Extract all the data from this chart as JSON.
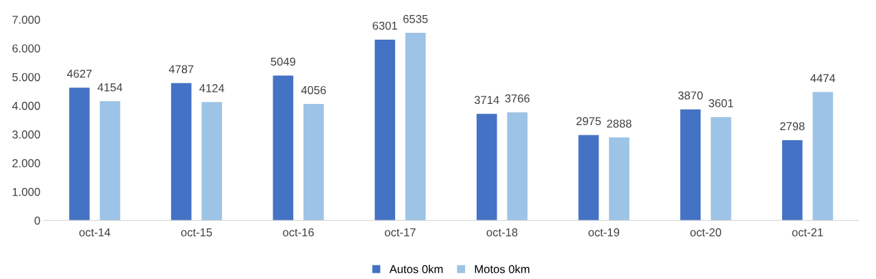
{
  "chart_data": {
    "type": "bar",
    "categories": [
      "oct-14",
      "oct-15",
      "oct-16",
      "oct-17",
      "oct-18",
      "oct-19",
      "oct-20",
      "oct-21"
    ],
    "series": [
      {
        "name": "Autos 0km",
        "color": "#4472c4",
        "values": [
          4627,
          4787,
          5049,
          6301,
          3714,
          2975,
          3870,
          2798
        ]
      },
      {
        "name": "Motos 0km",
        "color": "#9dc3e6",
        "values": [
          4154,
          4124,
          4056,
          6535,
          3766,
          2888,
          3601,
          4474
        ]
      }
    ],
    "ylim": [
      0,
      7000
    ],
    "yticks": [
      0,
      {
        "value": 1000,
        "label": "1.000"
      },
      {
        "value": 2000,
        "label": "2.000"
      },
      {
        "value": 3000,
        "label": "3.000"
      },
      {
        "value": 4000,
        "label": "4.000"
      },
      {
        "value": 5000,
        "label": "5.000"
      },
      {
        "value": 6000,
        "label": "6.000"
      },
      {
        "value": 7000,
        "label": "7.000"
      }
    ],
    "data_labels": true,
    "grid": false,
    "legend": "bottom"
  }
}
